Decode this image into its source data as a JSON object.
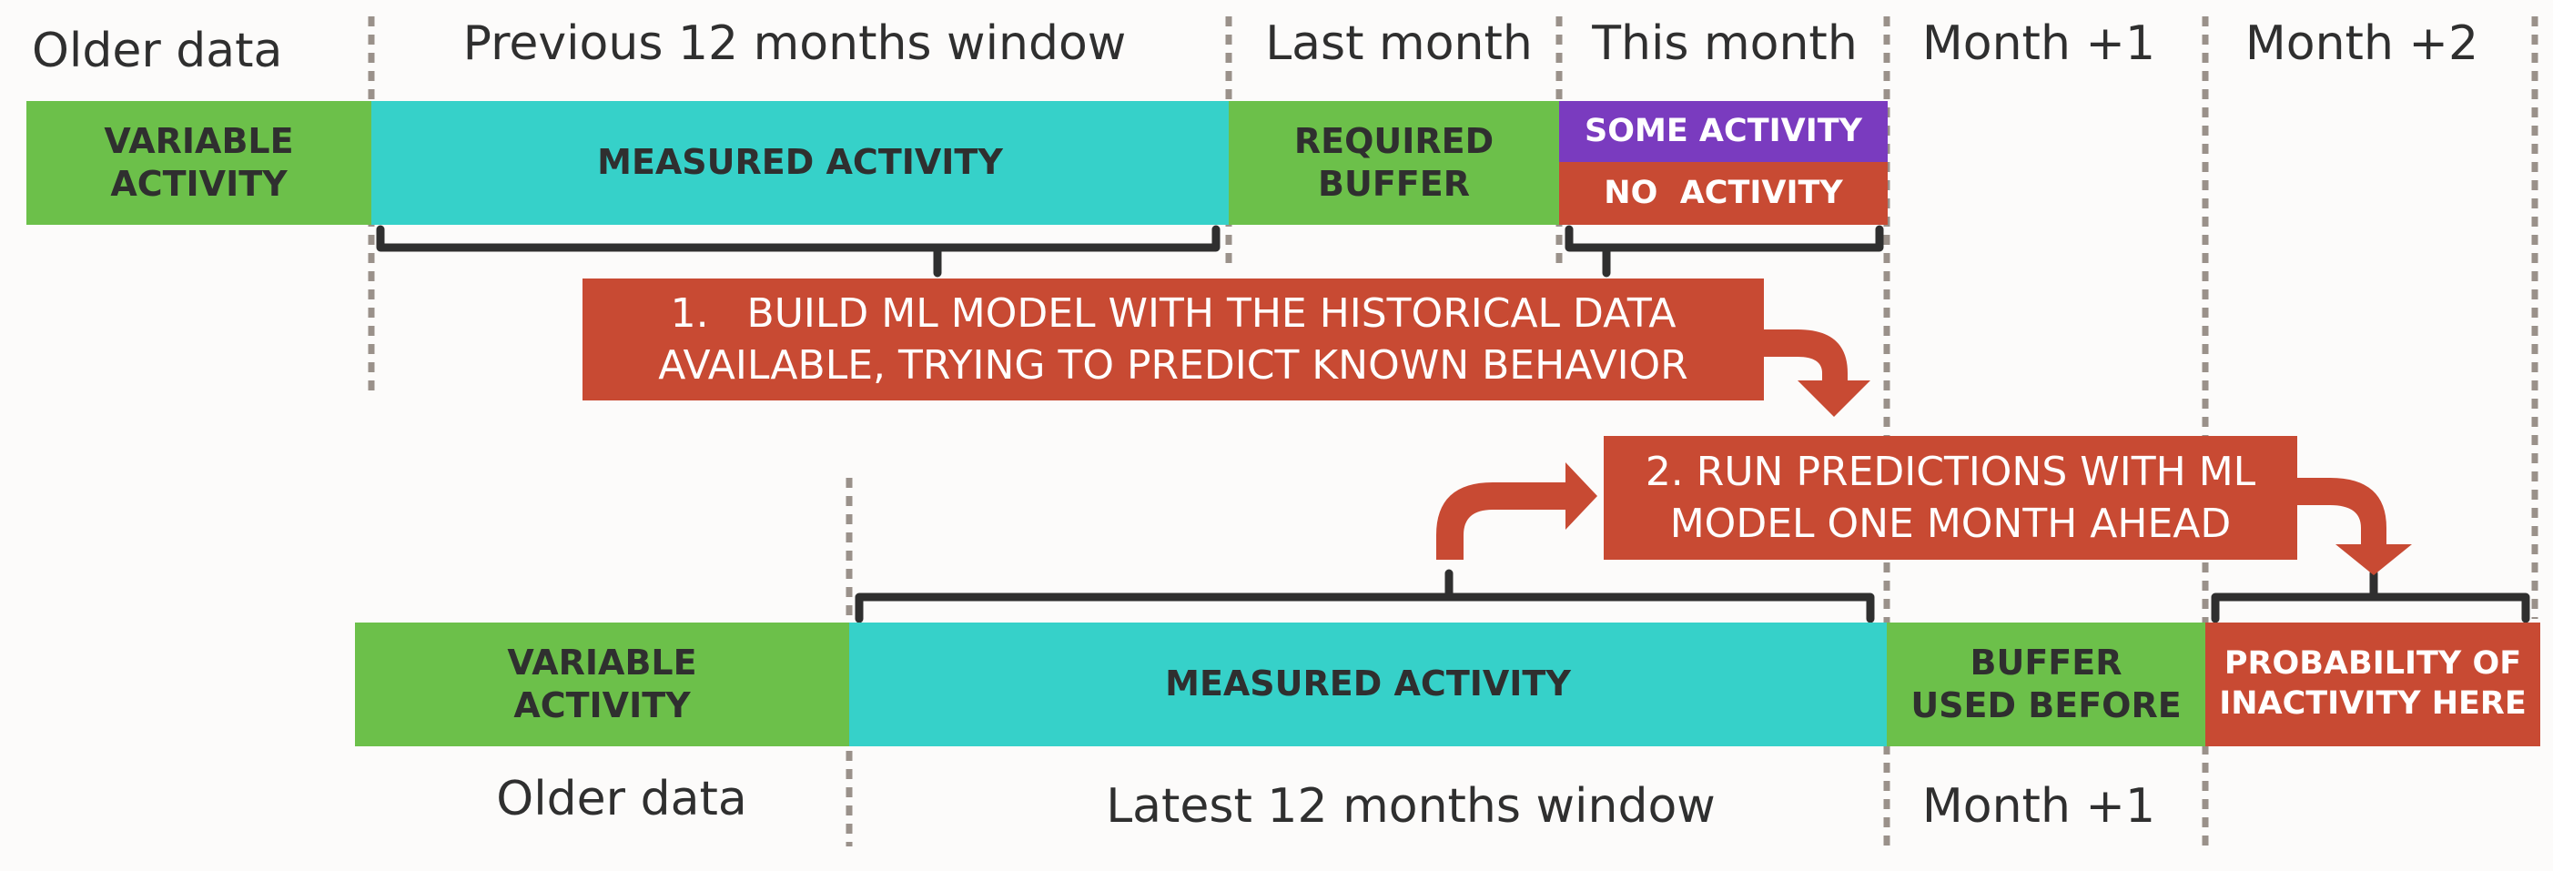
{
  "top_headers": {
    "older": "Older data",
    "previous_window": "Previous 12 months window",
    "last_month": "Last month",
    "this_month": "This month",
    "month_plus_1": "Month +1",
    "month_plus_2": "Month +2"
  },
  "top_row": {
    "variable_activity": "VARIABLE\nACTIVITY",
    "measured_activity": "MEASURED ACTIVITY",
    "required_buffer": "REQUIRED\nBUFFER",
    "some_activity": "SOME ACTIVITY",
    "no_activity": "NO  ACTIVITY"
  },
  "step1": {
    "line1": "1.   BUILD ML MODEL WITH THE HISTORICAL DATA",
    "line2": "AVAILABLE, TRYING TO PREDICT KNOWN BEHAVIOR"
  },
  "step2": {
    "line1": "2. RUN PREDICTIONS WITH ML",
    "line2": "MODEL ONE MONTH AHEAD"
  },
  "bottom_row": {
    "variable_activity": "VARIABLE\nACTIVITY",
    "measured_activity": "MEASURED ACTIVITY",
    "buffer_used_before": "BUFFER\nUSED BEFORE",
    "probability_inactivity": "PROBABILITY OF\nINACTIVITY HERE"
  },
  "bottom_headers": {
    "older": "Older data",
    "latest_window": "Latest 12 months window",
    "month_plus_1": "Month +1"
  },
  "colors": {
    "green": "#6cc04a",
    "teal": "#36d1c9",
    "purple": "#7a3bbf",
    "red": "#c84a33",
    "bracket": "#2f2f2f",
    "divider": "#9a918a"
  }
}
